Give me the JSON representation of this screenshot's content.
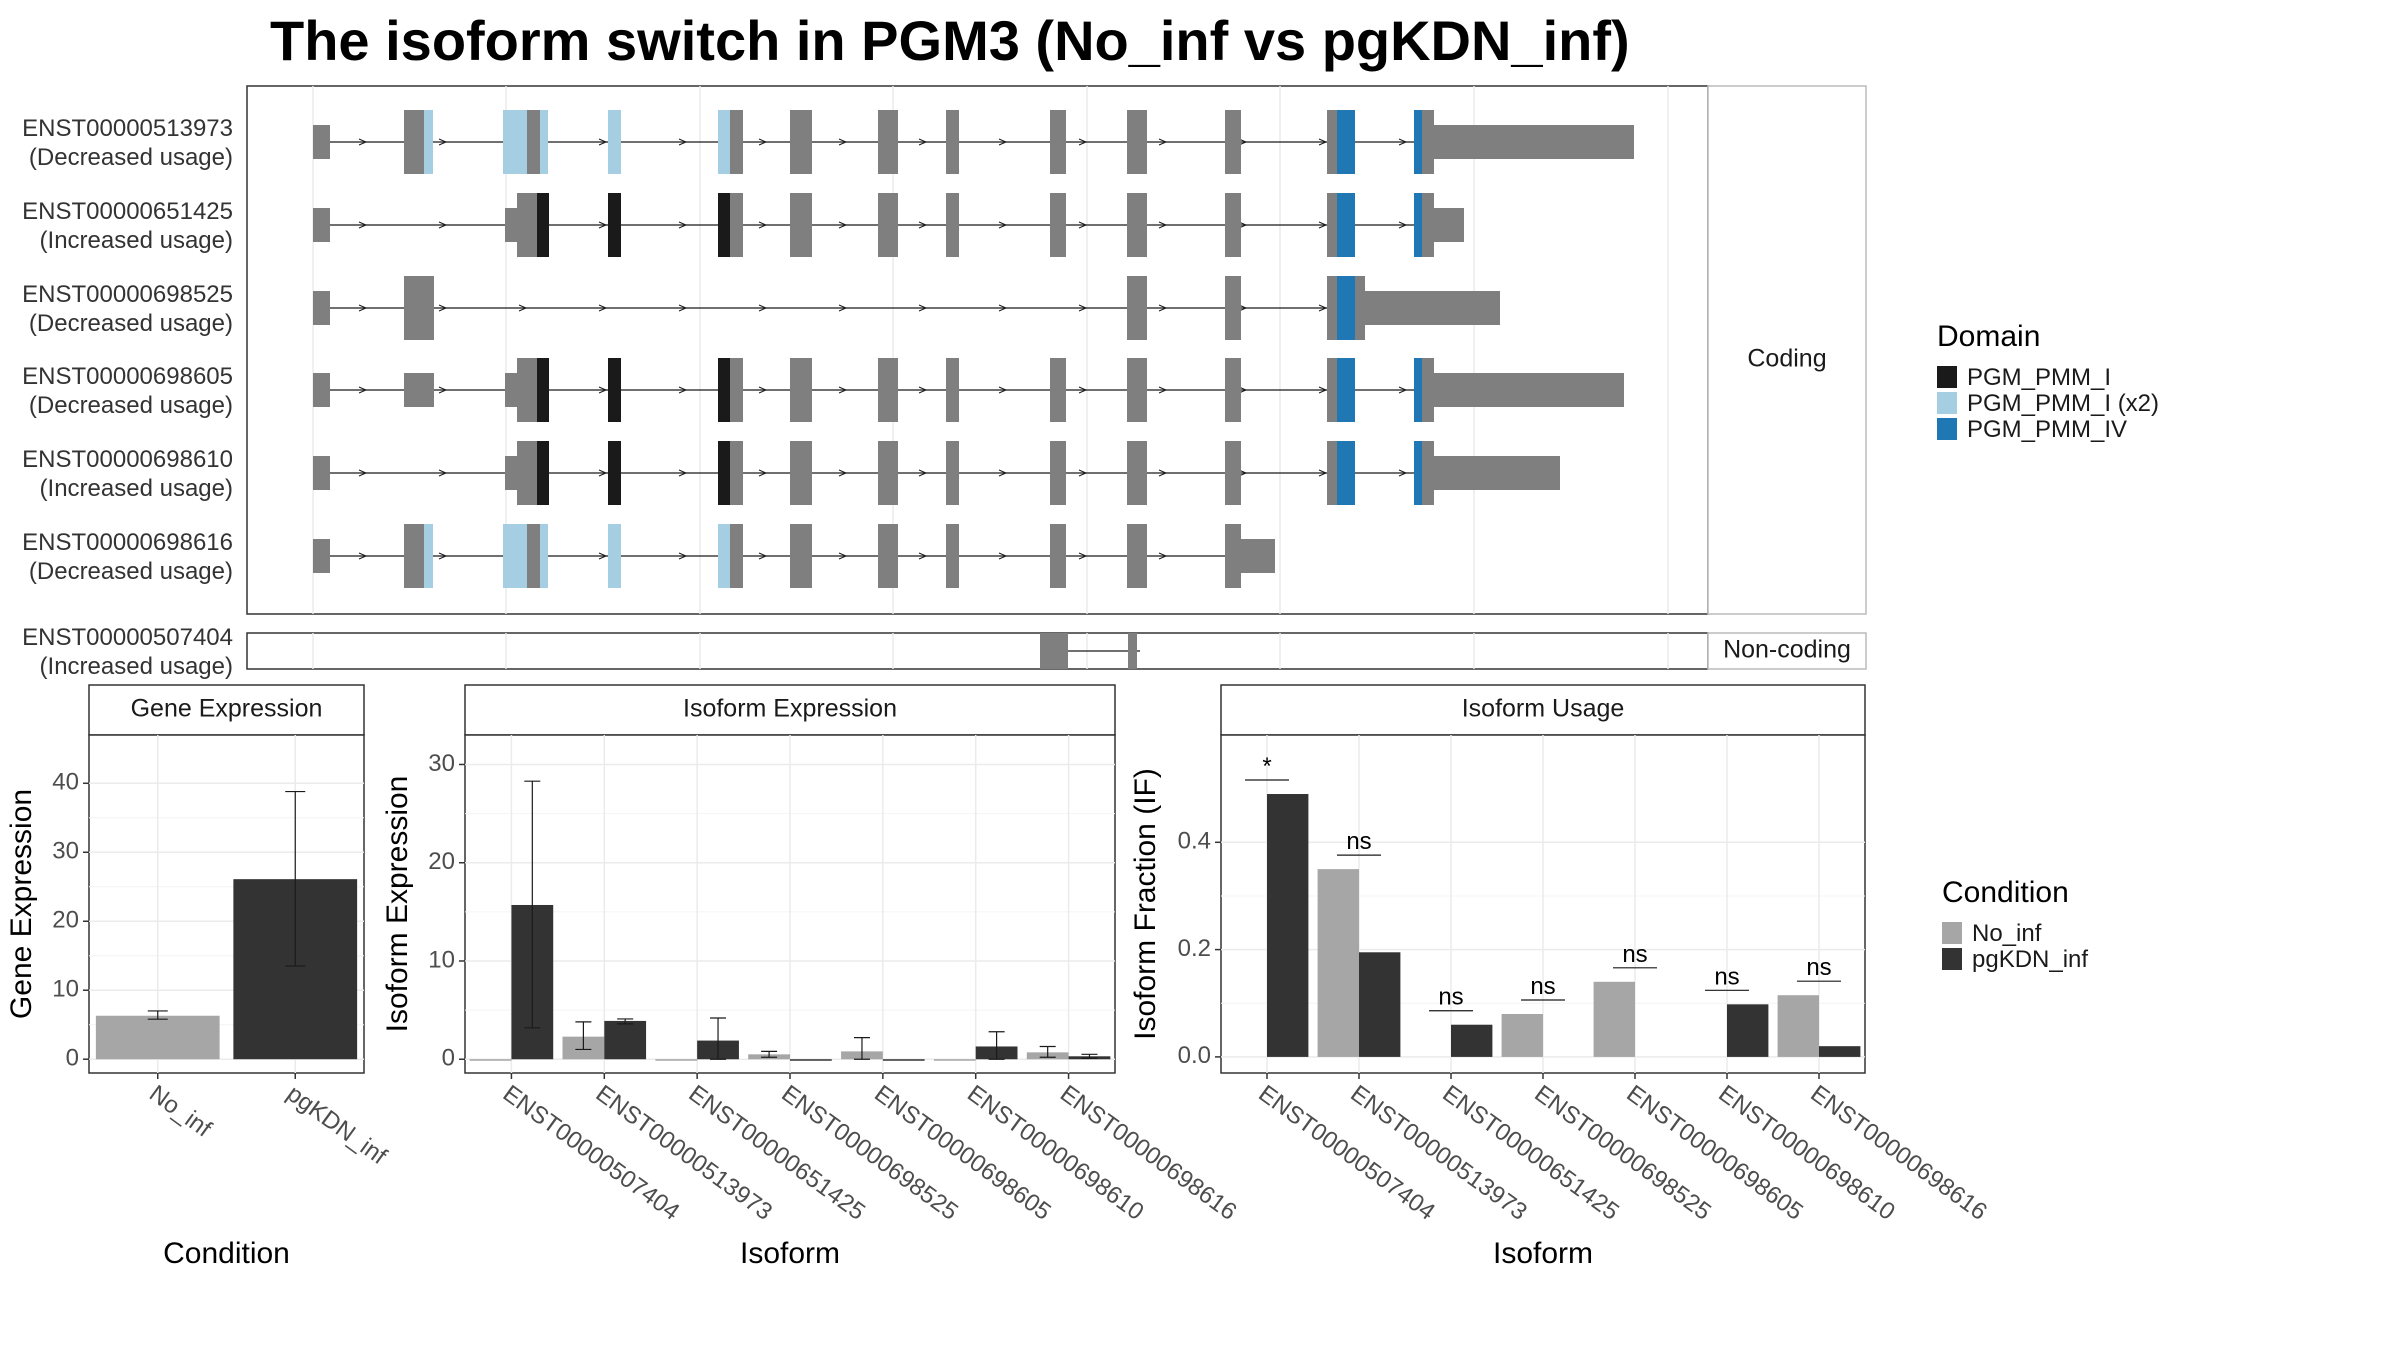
{
  "title": "The isoform switch in PGM3 (No_inf vs pgKDN_inf)",
  "chart_data": [
    {
      "type": "gene-structure",
      "facets": [
        "Coding",
        "Non-coding"
      ],
      "legend_title": "Domain",
      "legend_placement": "right",
      "domains": [
        {
          "name": "PGM_PMM_I",
          "color": "#1a1a1a"
        },
        {
          "name": "PGM_PMM_I (x2)",
          "color": "#a6cee3"
        },
        {
          "name": "PGM_PMM_IV",
          "color": "#1f78b4"
        }
      ],
      "transcripts": [
        {
          "id": "ENST00000513973",
          "usage": "(Decreased usage)",
          "category": "Coding"
        },
        {
          "id": "ENST00000651425",
          "usage": "(Increased usage)",
          "category": "Coding"
        },
        {
          "id": "ENST00000698525",
          "usage": "(Decreased usage)",
          "category": "Coding"
        },
        {
          "id": "ENST00000698605",
          "usage": "(Decreased usage)",
          "category": "Coding"
        },
        {
          "id": "ENST00000698610",
          "usage": "(Increased usage)",
          "category": "Coding"
        },
        {
          "id": "ENST00000698616",
          "usage": "(Decreased usage)",
          "category": "Coding"
        },
        {
          "id": "ENST00000507404",
          "usage": "(Increased usage)",
          "category": "Non-coding"
        }
      ]
    },
    {
      "type": "bar",
      "panel": "Gene Expression",
      "xlabel": "Condition",
      "ylabel": "Gene Expression",
      "categories": [
        "No_inf",
        "pgKDN_inf"
      ],
      "values": [
        6.3,
        26.1
      ],
      "err_low": [
        5.8,
        13.5
      ],
      "err_high": [
        7.0,
        38.8
      ],
      "colors": [
        "#a6a6a6",
        "#333333"
      ],
      "ylim": [
        -2,
        47
      ],
      "yticks": [
        0,
        10,
        20,
        30,
        40
      ],
      "grid": true
    },
    {
      "type": "bar",
      "panel": "Isoform Expression",
      "xlabel": "Isoform",
      "ylabel": "Isoform Expression",
      "categories": [
        "ENST00000507404",
        "ENST00000513973",
        "ENST00000651425",
        "ENST00000698525",
        "ENST00000698605",
        "ENST00000698610",
        "ENST00000698616"
      ],
      "series": [
        {
          "name": "No_inf",
          "color": "#a6a6a6",
          "values": [
            0.0,
            2.3,
            0.0,
            0.5,
            0.8,
            0.0,
            0.7
          ]
        },
        {
          "name": "pgKDN_inf",
          "color": "#333333",
          "values": [
            15.7,
            3.9,
            1.9,
            0.0,
            0.0,
            1.3,
            0.3
          ]
        }
      ],
      "errors": {
        "No_inf": [
          [
            0,
            0
          ],
          [
            1.0,
            3.8
          ],
          [
            0,
            0
          ],
          [
            0.2,
            0.8
          ],
          [
            0,
            2.2
          ],
          [
            0,
            0
          ],
          [
            0.2,
            1.3
          ]
        ],
        "pgKDN_inf": [
          [
            3.2,
            28.3
          ],
          [
            3.6,
            4.1
          ],
          [
            0,
            4.2
          ],
          [
            0,
            0
          ],
          [
            0,
            0
          ],
          [
            0,
            2.8
          ],
          [
            0.1,
            0.5
          ]
        ]
      },
      "ylim": [
        -1.4,
        33
      ],
      "yticks": [
        0,
        10,
        20,
        30
      ],
      "grid": true
    },
    {
      "type": "bar",
      "panel": "Isoform Usage",
      "xlabel": "Isoform",
      "ylabel": "Isoform Fraction (IF)",
      "categories": [
        "ENST00000507404",
        "ENST00000513973",
        "ENST00000651425",
        "ENST00000698525",
        "ENST00000698605",
        "ENST00000698610",
        "ENST00000698616"
      ],
      "series": [
        {
          "name": "No_inf",
          "color": "#a6a6a6",
          "values": [
            0.0,
            0.35,
            0.0,
            0.08,
            0.14,
            0.0,
            0.115
          ]
        },
        {
          "name": "pgKDN_inf",
          "color": "#333333",
          "values": [
            0.49,
            0.195,
            0.06,
            0.0,
            0.0,
            0.098,
            0.02
          ]
        }
      ],
      "significance": [
        "*",
        "ns",
        "ns",
        "ns",
        "ns",
        "ns",
        "ns"
      ],
      "ylim": [
        -0.03,
        0.6
      ],
      "yticks": [
        0.0,
        0.2,
        0.4
      ],
      "ytick_labels": [
        "0.0",
        "0.2",
        "0.4"
      ],
      "legend_title": "Condition",
      "legend_placement": "right",
      "grid": true
    }
  ]
}
